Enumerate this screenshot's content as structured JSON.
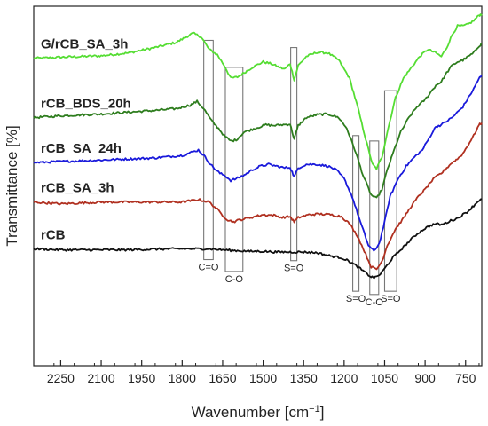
{
  "chart_data": {
    "type": "line",
    "xlabel": "Wavenumber [cm",
    "xlabel_sup": "−1",
    "xlabel_close": "]",
    "ylabel": "Transmittance [%]",
    "xlim": [
      2350,
      690
    ],
    "ylim": [
      0,
      1
    ],
    "x_reversed": true,
    "x_ticks": [
      2250,
      2100,
      1950,
      1800,
      1650,
      1500,
      1350,
      1200,
      1050,
      900,
      750
    ],
    "y_ticks_shown": false,
    "colors": {
      "G/rCB_SA_3h": "#55dd33",
      "rCB_BDS_20h": "#2e7d1e",
      "rCB_SA_24h": "#1a1adb",
      "rCB_SA_3h": "#b03020",
      "rCB": "#111111",
      "box": "#777777"
    },
    "series": [
      {
        "name": "G/rCB_SA_3h",
        "noise": 0.003,
        "points": [
          [
            2350,
            0.855
          ],
          [
            2250,
            0.858
          ],
          [
            2100,
            0.862
          ],
          [
            2000,
            0.87
          ],
          [
            1900,
            0.885
          ],
          [
            1820,
            0.9
          ],
          [
            1760,
            0.925
          ],
          [
            1730,
            0.915
          ],
          [
            1700,
            0.88
          ],
          [
            1670,
            0.865
          ],
          [
            1640,
            0.83
          ],
          [
            1620,
            0.8
          ],
          [
            1595,
            0.803
          ],
          [
            1570,
            0.815
          ],
          [
            1540,
            0.83
          ],
          [
            1500,
            0.845
          ],
          [
            1470,
            0.84
          ],
          [
            1440,
            0.83
          ],
          [
            1420,
            0.825
          ],
          [
            1400,
            0.84
          ],
          [
            1385,
            0.795
          ],
          [
            1370,
            0.835
          ],
          [
            1340,
            0.86
          ],
          [
            1300,
            0.872
          ],
          [
            1260,
            0.87
          ],
          [
            1220,
            0.85
          ],
          [
            1180,
            0.8
          ],
          [
            1150,
            0.72
          ],
          [
            1120,
            0.63
          ],
          [
            1095,
            0.56
          ],
          [
            1080,
            0.548
          ],
          [
            1060,
            0.58
          ],
          [
            1040,
            0.65
          ],
          [
            1010,
            0.745
          ],
          [
            980,
            0.8
          ],
          [
            950,
            0.83
          ],
          [
            920,
            0.86
          ],
          [
            890,
            0.88
          ],
          [
            860,
            0.87
          ],
          [
            840,
            0.86
          ],
          [
            820,
            0.885
          ],
          [
            800,
            0.92
          ],
          [
            780,
            0.945
          ],
          [
            760,
            0.945
          ],
          [
            740,
            0.95
          ],
          [
            720,
            0.96
          ],
          [
            700,
            0.975
          ],
          [
            690,
            0.978
          ]
        ]
      },
      {
        "name": "rCB_BDS_20h",
        "noise": 0.003,
        "points": [
          [
            2350,
            0.69
          ],
          [
            2250,
            0.695
          ],
          [
            2100,
            0.7
          ],
          [
            2000,
            0.705
          ],
          [
            1900,
            0.71
          ],
          [
            1820,
            0.715
          ],
          [
            1770,
            0.725
          ],
          [
            1745,
            0.735
          ],
          [
            1720,
            0.715
          ],
          [
            1690,
            0.68
          ],
          [
            1665,
            0.66
          ],
          [
            1645,
            0.64
          ],
          [
            1620,
            0.625
          ],
          [
            1600,
            0.628
          ],
          [
            1570,
            0.65
          ],
          [
            1530,
            0.66
          ],
          [
            1490,
            0.67
          ],
          [
            1460,
            0.668
          ],
          [
            1430,
            0.67
          ],
          [
            1400,
            0.672
          ],
          [
            1385,
            0.63
          ],
          [
            1370,
            0.668
          ],
          [
            1340,
            0.69
          ],
          [
            1300,
            0.698
          ],
          [
            1260,
            0.7
          ],
          [
            1220,
            0.69
          ],
          [
            1190,
            0.66
          ],
          [
            1160,
            0.6
          ],
          [
            1130,
            0.53
          ],
          [
            1100,
            0.475
          ],
          [
            1080,
            0.465
          ],
          [
            1060,
            0.49
          ],
          [
            1040,
            0.545
          ],
          [
            1010,
            0.61
          ],
          [
            990,
            0.65
          ],
          [
            960,
            0.69
          ],
          [
            930,
            0.72
          ],
          [
            900,
            0.74
          ],
          [
            880,
            0.76
          ],
          [
            860,
            0.78
          ],
          [
            840,
            0.79
          ],
          [
            820,
            0.815
          ],
          [
            800,
            0.835
          ],
          [
            780,
            0.845
          ],
          [
            760,
            0.85
          ],
          [
            740,
            0.86
          ],
          [
            720,
            0.87
          ],
          [
            700,
            0.89
          ],
          [
            690,
            0.895
          ]
        ]
      },
      {
        "name": "rCB_SA_24h",
        "noise": 0.003,
        "points": [
          [
            2350,
            0.565
          ],
          [
            2250,
            0.568
          ],
          [
            2100,
            0.572
          ],
          [
            2000,
            0.575
          ],
          [
            1900,
            0.578
          ],
          [
            1800,
            0.585
          ],
          [
            1760,
            0.595
          ],
          [
            1740,
            0.6
          ],
          [
            1720,
            0.585
          ],
          [
            1700,
            0.565
          ],
          [
            1680,
            0.548
          ],
          [
            1660,
            0.535
          ],
          [
            1640,
            0.528
          ],
          [
            1620,
            0.515
          ],
          [
            1600,
            0.52
          ],
          [
            1570,
            0.53
          ],
          [
            1540,
            0.545
          ],
          [
            1510,
            0.555
          ],
          [
            1480,
            0.56
          ],
          [
            1450,
            0.555
          ],
          [
            1420,
            0.55
          ],
          [
            1400,
            0.552
          ],
          [
            1385,
            0.525
          ],
          [
            1370,
            0.55
          ],
          [
            1340,
            0.56
          ],
          [
            1300,
            0.56
          ],
          [
            1260,
            0.555
          ],
          [
            1230,
            0.545
          ],
          [
            1200,
            0.52
          ],
          [
            1170,
            0.47
          ],
          [
            1140,
            0.4
          ],
          [
            1110,
            0.335
          ],
          [
            1090,
            0.318
          ],
          [
            1070,
            0.34
          ],
          [
            1050,
            0.4
          ],
          [
            1030,
            0.47
          ],
          [
            1000,
            0.52
          ],
          [
            970,
            0.555
          ],
          [
            940,
            0.58
          ],
          [
            910,
            0.6
          ],
          [
            880,
            0.64
          ],
          [
            860,
            0.665
          ],
          [
            840,
            0.67
          ],
          [
            820,
            0.68
          ],
          [
            800,
            0.69
          ],
          [
            780,
            0.705
          ],
          [
            760,
            0.72
          ],
          [
            740,
            0.745
          ],
          [
            720,
            0.77
          ],
          [
            700,
            0.8
          ],
          [
            690,
            0.805
          ]
        ]
      },
      {
        "name": "rCB_SA_3h",
        "noise": 0.003,
        "points": [
          [
            2350,
            0.455
          ],
          [
            2250,
            0.45
          ],
          [
            2100,
            0.455
          ],
          [
            2000,
            0.455
          ],
          [
            1900,
            0.455
          ],
          [
            1800,
            0.455
          ],
          [
            1740,
            0.462
          ],
          [
            1700,
            0.455
          ],
          [
            1670,
            0.435
          ],
          [
            1650,
            0.418
          ],
          [
            1630,
            0.405
          ],
          [
            1610,
            0.4
          ],
          [
            1590,
            0.405
          ],
          [
            1560,
            0.41
          ],
          [
            1530,
            0.415
          ],
          [
            1500,
            0.42
          ],
          [
            1460,
            0.418
          ],
          [
            1430,
            0.412
          ],
          [
            1400,
            0.415
          ],
          [
            1385,
            0.4
          ],
          [
            1370,
            0.412
          ],
          [
            1330,
            0.42
          ],
          [
            1290,
            0.422
          ],
          [
            1250,
            0.42
          ],
          [
            1210,
            0.415
          ],
          [
            1180,
            0.395
          ],
          [
            1150,
            0.36
          ],
          [
            1120,
            0.31
          ],
          [
            1100,
            0.275
          ],
          [
            1080,
            0.268
          ],
          [
            1060,
            0.29
          ],
          [
            1040,
            0.335
          ],
          [
            1010,
            0.38
          ],
          [
            980,
            0.41
          ],
          [
            950,
            0.445
          ],
          [
            920,
            0.475
          ],
          [
            900,
            0.49
          ],
          [
            880,
            0.51
          ],
          [
            860,
            0.525
          ],
          [
            840,
            0.535
          ],
          [
            820,
            0.55
          ],
          [
            800,
            0.565
          ],
          [
            780,
            0.575
          ],
          [
            760,
            0.59
          ],
          [
            740,
            0.615
          ],
          [
            720,
            0.64
          ],
          [
            700,
            0.67
          ],
          [
            690,
            0.675
          ]
        ]
      },
      {
        "name": "rCB",
        "noise": 0.003,
        "points": [
          [
            2350,
            0.325
          ],
          [
            2250,
            0.322
          ],
          [
            2100,
            0.322
          ],
          [
            2000,
            0.322
          ],
          [
            1900,
            0.324
          ],
          [
            1800,
            0.325
          ],
          [
            1700,
            0.325
          ],
          [
            1650,
            0.322
          ],
          [
            1600,
            0.32
          ],
          [
            1550,
            0.318
          ],
          [
            1500,
            0.318
          ],
          [
            1450,
            0.316
          ],
          [
            1400,
            0.316
          ],
          [
            1350,
            0.316
          ],
          [
            1300,
            0.314
          ],
          [
            1250,
            0.305
          ],
          [
            1210,
            0.3
          ],
          [
            1180,
            0.29
          ],
          [
            1150,
            0.275
          ],
          [
            1120,
            0.258
          ],
          [
            1100,
            0.247
          ],
          [
            1085,
            0.245
          ],
          [
            1065,
            0.255
          ],
          [
            1045,
            0.275
          ],
          [
            1020,
            0.3
          ],
          [
            1000,
            0.315
          ],
          [
            980,
            0.33
          ],
          [
            960,
            0.345
          ],
          [
            940,
            0.36
          ],
          [
            920,
            0.372
          ],
          [
            900,
            0.382
          ],
          [
            880,
            0.39
          ],
          [
            860,
            0.395
          ],
          [
            840,
            0.392
          ],
          [
            820,
            0.398
          ],
          [
            800,
            0.405
          ],
          [
            780,
            0.41
          ],
          [
            760,
            0.42
          ],
          [
            740,
            0.43
          ],
          [
            720,
            0.445
          ],
          [
            700,
            0.46
          ],
          [
            690,
            0.462
          ]
        ]
      }
    ],
    "annotations": [
      {
        "label": "C=O",
        "x1": 1720,
        "x2": 1685,
        "y1": 0.905,
        "y2": 0.295,
        "label_pos": "below"
      },
      {
        "label": "C-O",
        "x1": 1640,
        "x2": 1575,
        "y1": 0.83,
        "y2": 0.262,
        "label_pos": "below"
      },
      {
        "label": "S=O",
        "x1": 1398,
        "x2": 1375,
        "y1": 0.885,
        "y2": 0.292,
        "label_pos": "below"
      },
      {
        "label": "S=O",
        "x1": 1168,
        "x2": 1145,
        "y1": 0.64,
        "y2": 0.207,
        "label_pos": "below"
      },
      {
        "label": "C-O",
        "x1": 1105,
        "x2": 1072,
        "y1": 0.625,
        "y2": 0.198,
        "label_pos": "below"
      },
      {
        "label": "S=O",
        "x1": 1050,
        "x2": 1005,
        "y1": 0.765,
        "y2": 0.207,
        "label_pos": "below"
      }
    ]
  }
}
